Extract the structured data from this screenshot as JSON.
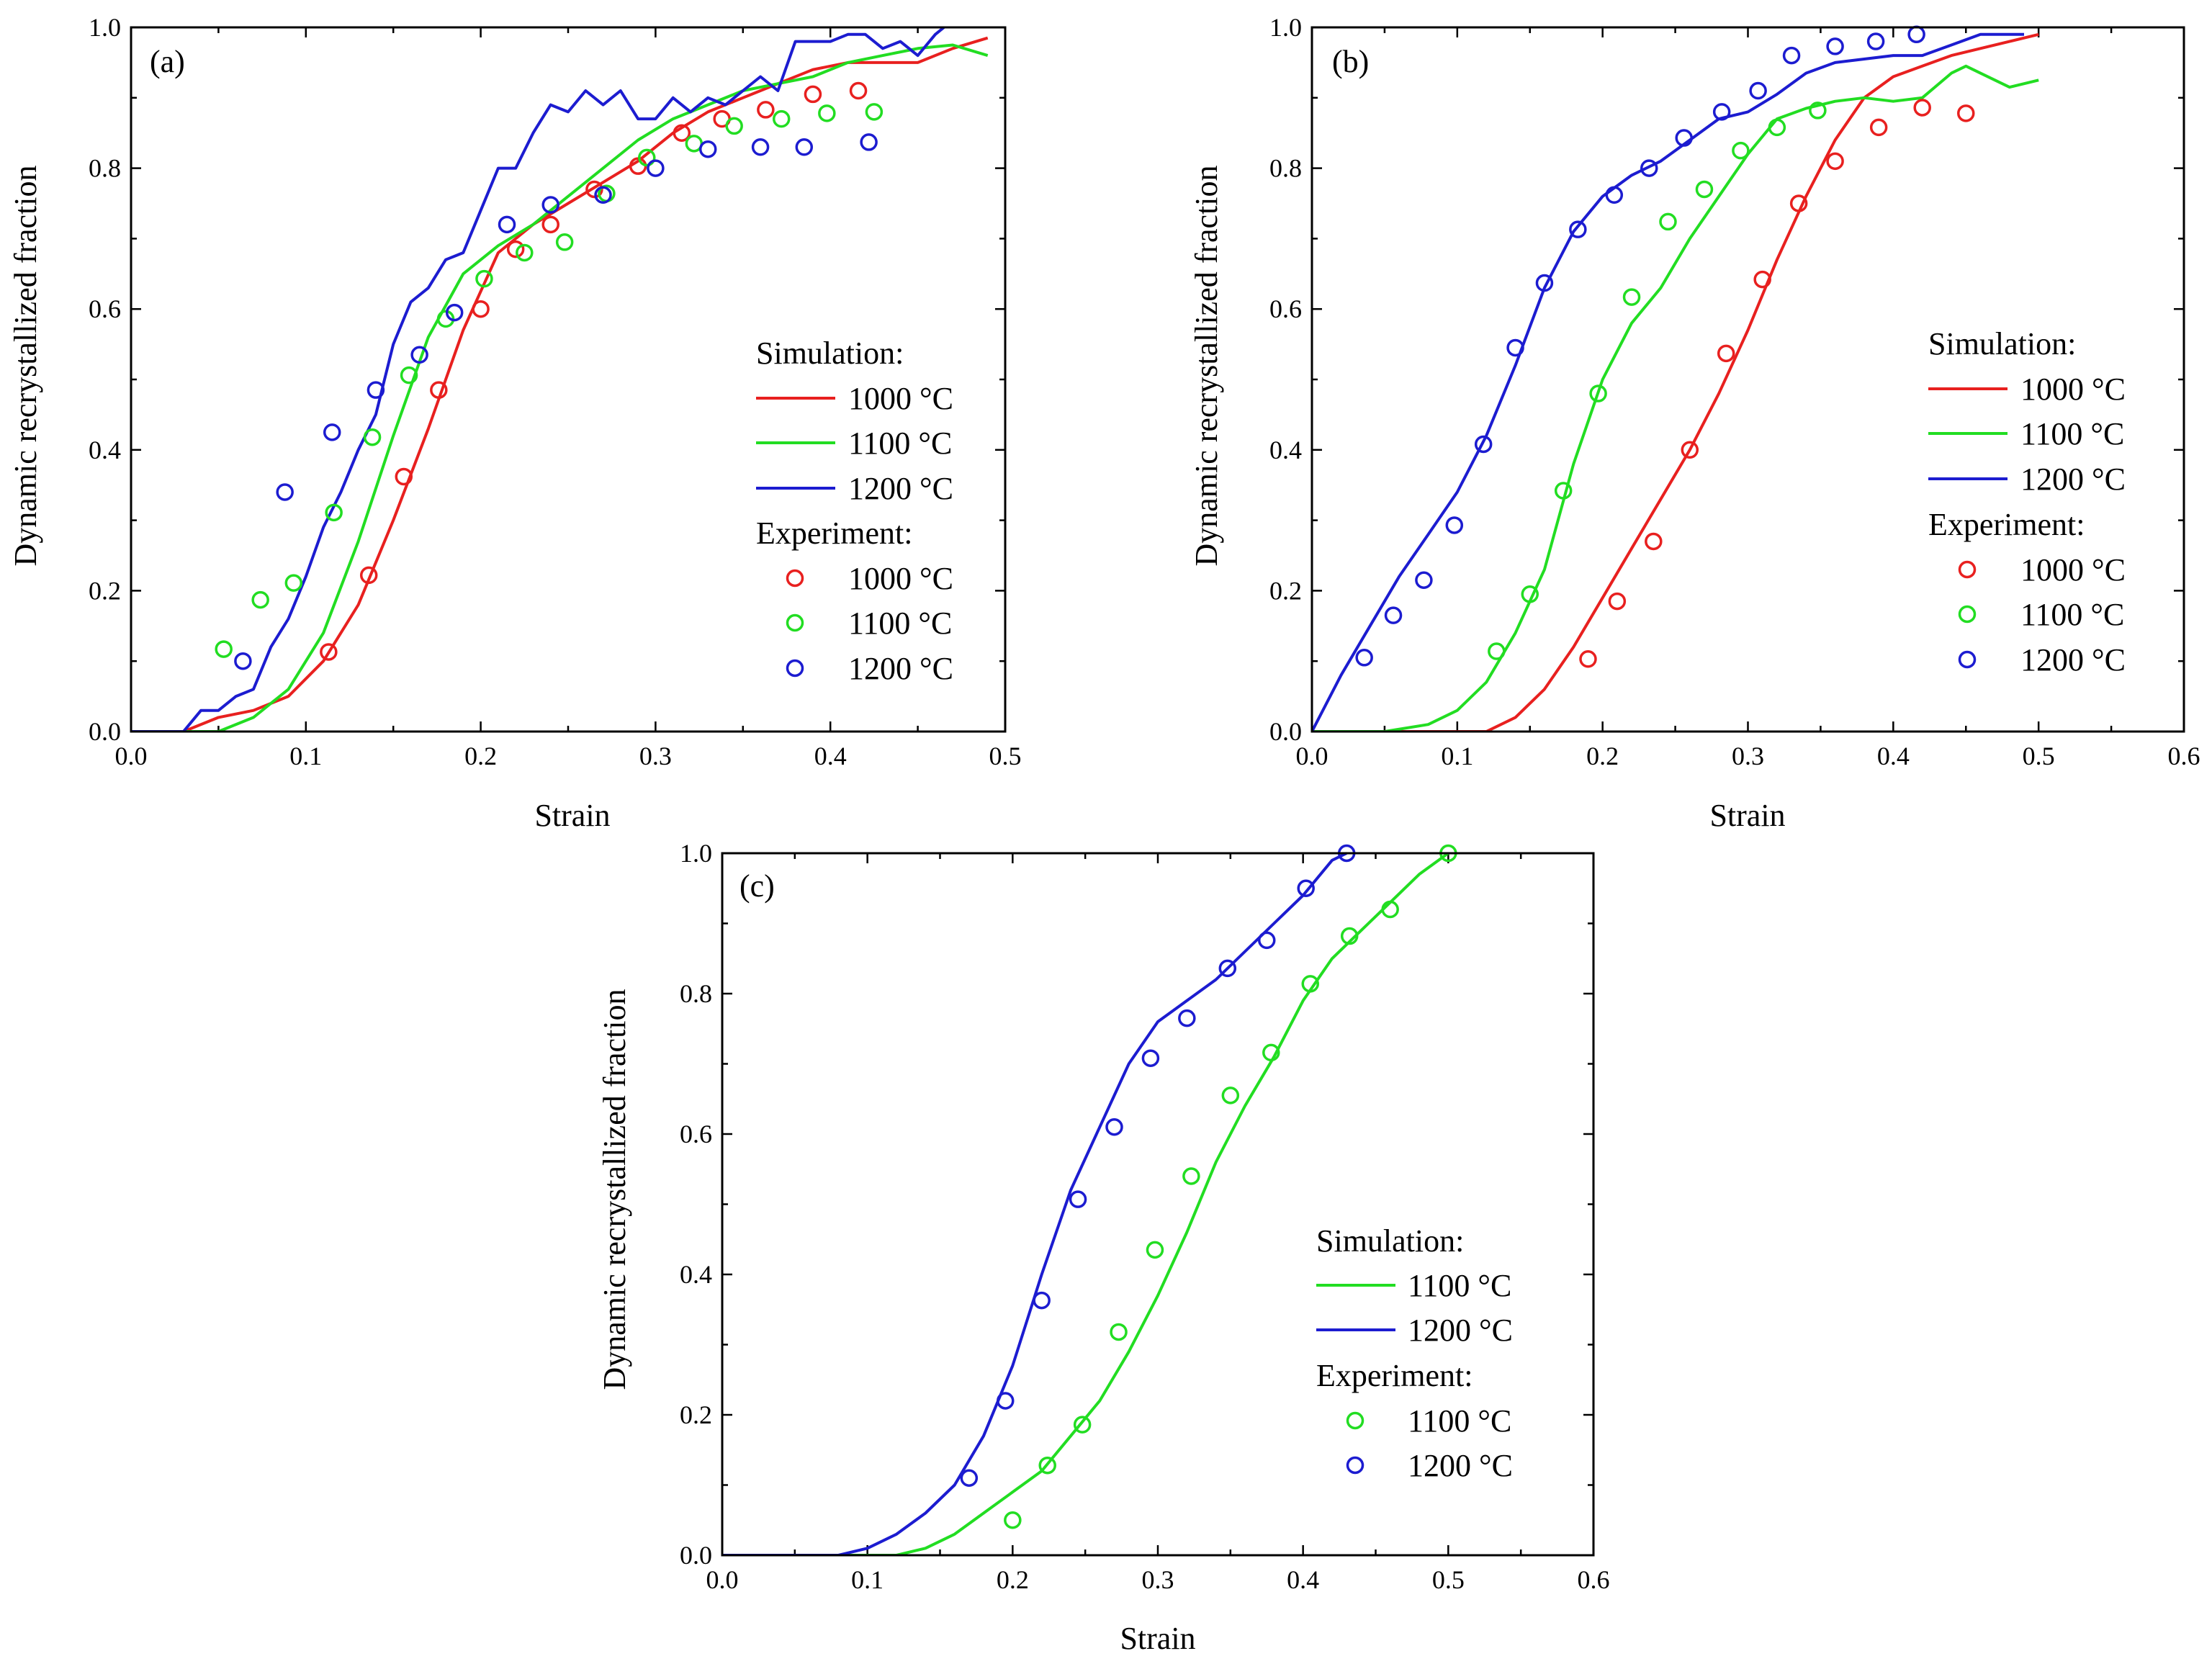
{
  "chart_data": [
    {
      "type": "line",
      "panel_label": "(a)",
      "xlabel": "Strain",
      "ylabel": "Dynamic recrystallized fraction",
      "xlim": [
        0.0,
        0.5
      ],
      "ylim": [
        0.0,
        1.0
      ],
      "xticks": [
        "0.0",
        "0.1",
        "0.2",
        "0.3",
        "0.4",
        "0.5"
      ],
      "yticks": [
        "0.0",
        "0.2",
        "0.4",
        "0.6",
        "0.8",
        "1.0"
      ],
      "legend": {
        "position": "right",
        "simulation_header": "Simulation:",
        "experiment_header": "Experiment:",
        "entries": [
          "1000 °C",
          "1100 °C",
          "1200 °C"
        ]
      },
      "simulation": [
        {
          "name": "1000 °C",
          "color": "#e8201f",
          "x": [
            0.0,
            0.03,
            0.05,
            0.07,
            0.09,
            0.11,
            0.13,
            0.15,
            0.17,
            0.19,
            0.21,
            0.23,
            0.25,
            0.27,
            0.29,
            0.31,
            0.33,
            0.35,
            0.37,
            0.39,
            0.41,
            0.43,
            0.45,
            0.47,
            0.49
          ],
          "y": [
            0.0,
            0.0,
            0.02,
            0.03,
            0.05,
            0.1,
            0.18,
            0.3,
            0.43,
            0.57,
            0.68,
            0.72,
            0.75,
            0.78,
            0.81,
            0.85,
            0.88,
            0.9,
            0.92,
            0.94,
            0.95,
            0.95,
            0.95,
            0.97,
            0.985
          ]
        },
        {
          "name": "1100 °C",
          "color": "#22dd22",
          "x": [
            0.0,
            0.05,
            0.07,
            0.09,
            0.11,
            0.13,
            0.15,
            0.17,
            0.19,
            0.21,
            0.23,
            0.25,
            0.27,
            0.29,
            0.31,
            0.33,
            0.35,
            0.37,
            0.39,
            0.41,
            0.43,
            0.45,
            0.47,
            0.49
          ],
          "y": [
            0.0,
            0.0,
            0.02,
            0.06,
            0.14,
            0.27,
            0.42,
            0.56,
            0.65,
            0.69,
            0.72,
            0.76,
            0.8,
            0.84,
            0.87,
            0.89,
            0.91,
            0.92,
            0.93,
            0.95,
            0.96,
            0.97,
            0.975,
            0.96
          ]
        },
        {
          "name": "1200 °C",
          "color": "#1c1cd0",
          "x": [
            0.0,
            0.03,
            0.04,
            0.05,
            0.06,
            0.07,
            0.08,
            0.09,
            0.1,
            0.11,
            0.12,
            0.13,
            0.14,
            0.15,
            0.16,
            0.17,
            0.18,
            0.19,
            0.2,
            0.21,
            0.22,
            0.23,
            0.24,
            0.25,
            0.26,
            0.27,
            0.28,
            0.29,
            0.3,
            0.31,
            0.32,
            0.33,
            0.34,
            0.35,
            0.36,
            0.37,
            0.38,
            0.39,
            0.4,
            0.41,
            0.42,
            0.43,
            0.44,
            0.45,
            0.46,
            0.465
          ],
          "y": [
            0.0,
            0.0,
            0.03,
            0.03,
            0.05,
            0.06,
            0.12,
            0.16,
            0.22,
            0.29,
            0.34,
            0.4,
            0.45,
            0.55,
            0.61,
            0.63,
            0.67,
            0.68,
            0.74,
            0.8,
            0.8,
            0.85,
            0.89,
            0.88,
            0.91,
            0.89,
            0.91,
            0.87,
            0.87,
            0.9,
            0.88,
            0.9,
            0.89,
            0.91,
            0.93,
            0.91,
            0.98,
            0.98,
            0.98,
            0.99,
            0.99,
            0.97,
            0.98,
            0.96,
            0.99,
            1.0
          ]
        }
      ],
      "experiment": [
        {
          "name": "1000 °C",
          "color": "#e8201f",
          "x": [
            0.113,
            0.136,
            0.156,
            0.176,
            0.2,
            0.22,
            0.24,
            0.265,
            0.29,
            0.315,
            0.338,
            0.363,
            0.39,
            0.416
          ],
          "y": [
            0.113,
            0.222,
            0.362,
            0.485,
            0.6,
            0.685,
            0.72,
            0.77,
            0.803,
            0.85,
            0.87,
            0.883,
            0.905,
            0.91
          ]
        },
        {
          "name": "1100 °C",
          "color": "#22dd22",
          "x": [
            0.053,
            0.074,
            0.093,
            0.116,
            0.138,
            0.159,
            0.18,
            0.202,
            0.225,
            0.248,
            0.272,
            0.295,
            0.322,
            0.345,
            0.372,
            0.398,
            0.425
          ],
          "y": [
            0.117,
            0.187,
            0.211,
            0.311,
            0.418,
            0.506,
            0.586,
            0.643,
            0.68,
            0.695,
            0.764,
            0.815,
            0.835,
            0.86,
            0.87,
            0.878,
            0.88
          ]
        },
        {
          "name": "1200 °C",
          "color": "#1c1cd0",
          "x": [
            0.064,
            0.088,
            0.115,
            0.14,
            0.165,
            0.185,
            0.215,
            0.24,
            0.27,
            0.3,
            0.33,
            0.36,
            0.385,
            0.422
          ],
          "y": [
            0.1,
            0.34,
            0.425,
            0.485,
            0.535,
            0.595,
            0.72,
            0.748,
            0.762,
            0.8,
            0.827,
            0.83,
            0.83,
            0.837
          ]
        }
      ]
    },
    {
      "type": "line",
      "panel_label": "(b)",
      "xlabel": "Strain",
      "ylabel": "Dynamic recrystallized fraction",
      "xlim": [
        0.0,
        0.6
      ],
      "ylim": [
        0.0,
        1.0
      ],
      "xticks": [
        "0.0",
        "0.1",
        "0.2",
        "0.3",
        "0.4",
        "0.5",
        "0.6"
      ],
      "yticks": [
        "0.0",
        "0.2",
        "0.4",
        "0.6",
        "0.8",
        "1.0"
      ],
      "legend": {
        "position": "right",
        "simulation_header": "Simulation:",
        "experiment_header": "Experiment:",
        "entries": [
          "1000 °C",
          "1100 °C",
          "1200 °C"
        ]
      },
      "simulation": [
        {
          "name": "1000 °C",
          "color": "#e8201f",
          "x": [
            0.0,
            0.1,
            0.12,
            0.14,
            0.16,
            0.18,
            0.2,
            0.22,
            0.24,
            0.26,
            0.28,
            0.3,
            0.32,
            0.34,
            0.36,
            0.38,
            0.4,
            0.42,
            0.44,
            0.46,
            0.48,
            0.5
          ],
          "y": [
            0.0,
            0.0,
            0.0,
            0.02,
            0.06,
            0.12,
            0.19,
            0.26,
            0.33,
            0.4,
            0.48,
            0.57,
            0.67,
            0.76,
            0.84,
            0.9,
            0.93,
            0.945,
            0.96,
            0.97,
            0.98,
            0.99
          ]
        },
        {
          "name": "1100 °C",
          "color": "#22dd22",
          "x": [
            0.0,
            0.05,
            0.08,
            0.1,
            0.12,
            0.14,
            0.16,
            0.18,
            0.2,
            0.22,
            0.24,
            0.26,
            0.28,
            0.3,
            0.32,
            0.34,
            0.36,
            0.38,
            0.4,
            0.42,
            0.44,
            0.45,
            0.46,
            0.48,
            0.5
          ],
          "y": [
            0.0,
            0.0,
            0.01,
            0.03,
            0.07,
            0.14,
            0.23,
            0.38,
            0.5,
            0.58,
            0.63,
            0.7,
            0.76,
            0.82,
            0.87,
            0.885,
            0.895,
            0.9,
            0.895,
            0.9,
            0.935,
            0.945,
            0.935,
            0.915,
            0.925
          ]
        },
        {
          "name": "1200 °C",
          "color": "#1c1cd0",
          "x": [
            0.0,
            0.02,
            0.04,
            0.06,
            0.08,
            0.1,
            0.12,
            0.14,
            0.16,
            0.18,
            0.2,
            0.22,
            0.24,
            0.26,
            0.28,
            0.3,
            0.32,
            0.34,
            0.36,
            0.38,
            0.4,
            0.42,
            0.44,
            0.46,
            0.48,
            0.49
          ],
          "y": [
            0.0,
            0.08,
            0.15,
            0.22,
            0.28,
            0.34,
            0.42,
            0.52,
            0.63,
            0.71,
            0.76,
            0.79,
            0.81,
            0.84,
            0.87,
            0.88,
            0.905,
            0.935,
            0.95,
            0.955,
            0.96,
            0.96,
            0.975,
            0.99,
            0.99,
            0.99
          ]
        }
      ],
      "experiment": [
        {
          "name": "1000 °C",
          "color": "#e8201f",
          "x": [
            0.19,
            0.21,
            0.235,
            0.26,
            0.285,
            0.31,
            0.335,
            0.36,
            0.39,
            0.42,
            0.45
          ],
          "y": [
            0.103,
            0.185,
            0.27,
            0.4,
            0.537,
            0.642,
            0.75,
            0.81,
            0.858,
            0.886,
            0.878
          ]
        },
        {
          "name": "1100 °C",
          "color": "#22dd22",
          "x": [
            0.127,
            0.15,
            0.173,
            0.197,
            0.22,
            0.245,
            0.27,
            0.295,
            0.32,
            0.348
          ],
          "y": [
            0.114,
            0.195,
            0.342,
            0.48,
            0.617,
            0.724,
            0.77,
            0.825,
            0.858,
            0.882
          ]
        },
        {
          "name": "1200 °C",
          "color": "#1c1cd0",
          "x": [
            0.036,
            0.056,
            0.077,
            0.098,
            0.118,
            0.14,
            0.16,
            0.183,
            0.208,
            0.232,
            0.256,
            0.282,
            0.307,
            0.33,
            0.36,
            0.388,
            0.416
          ],
          "y": [
            0.105,
            0.165,
            0.215,
            0.293,
            0.408,
            0.545,
            0.637,
            0.713,
            0.762,
            0.8,
            0.843,
            0.88,
            0.91,
            0.96,
            0.973,
            0.98,
            0.99
          ]
        }
      ]
    },
    {
      "type": "line",
      "panel_label": "(c)",
      "xlabel": "Strain",
      "ylabel": "Dynamic recrystallized fraction",
      "xlim": [
        0.0,
        0.6
      ],
      "ylim": [
        0.0,
        1.0
      ],
      "xticks": [
        "0.0",
        "0.1",
        "0.2",
        "0.3",
        "0.4",
        "0.5",
        "0.6"
      ],
      "yticks": [
        "0.0",
        "0.2",
        "0.4",
        "0.6",
        "0.8",
        "1.0"
      ],
      "legend": {
        "position": "right",
        "simulation_header": "Simulation:",
        "experiment_header": "Experiment:",
        "entries": [
          "1100 °C",
          "1200 °C"
        ]
      },
      "simulation": [
        {
          "name": "1100 °C",
          "color": "#22dd22",
          "x": [
            0.0,
            0.12,
            0.14,
            0.16,
            0.18,
            0.2,
            0.22,
            0.24,
            0.26,
            0.28,
            0.3,
            0.32,
            0.34,
            0.36,
            0.38,
            0.4,
            0.42,
            0.44,
            0.46,
            0.48,
            0.5
          ],
          "y": [
            0.0,
            0.0,
            0.01,
            0.03,
            0.06,
            0.09,
            0.12,
            0.17,
            0.22,
            0.29,
            0.37,
            0.46,
            0.56,
            0.64,
            0.71,
            0.79,
            0.85,
            0.89,
            0.93,
            0.97,
            1.0
          ]
        },
        {
          "name": "1200 °C",
          "color": "#1c1cd0",
          "x": [
            0.0,
            0.08,
            0.1,
            0.12,
            0.14,
            0.16,
            0.18,
            0.2,
            0.22,
            0.24,
            0.26,
            0.28,
            0.3,
            0.32,
            0.34,
            0.36,
            0.38,
            0.4,
            0.42,
            0.43
          ],
          "y": [
            0.0,
            0.0,
            0.01,
            0.03,
            0.06,
            0.1,
            0.17,
            0.27,
            0.4,
            0.52,
            0.61,
            0.7,
            0.76,
            0.79,
            0.82,
            0.86,
            0.9,
            0.94,
            0.99,
            1.0
          ]
        }
      ],
      "experiment": [
        {
          "name": "1100 °C",
          "color": "#22dd22",
          "x": [
            0.2,
            0.224,
            0.248,
            0.273,
            0.298,
            0.323,
            0.35,
            0.378,
            0.405,
            0.432,
            0.46,
            0.5
          ],
          "y": [
            0.05,
            0.128,
            0.186,
            0.318,
            0.435,
            0.54,
            0.655,
            0.716,
            0.814,
            0.882,
            0.92,
            1.0
          ]
        },
        {
          "name": "1200 °C",
          "color": "#1c1cd0",
          "x": [
            0.17,
            0.195,
            0.22,
            0.245,
            0.27,
            0.295,
            0.32,
            0.348,
            0.375,
            0.402,
            0.43
          ],
          "y": [
            0.11,
            0.22,
            0.363,
            0.507,
            0.61,
            0.708,
            0.765,
            0.836,
            0.876,
            0.95,
            1.0
          ]
        }
      ]
    }
  ]
}
